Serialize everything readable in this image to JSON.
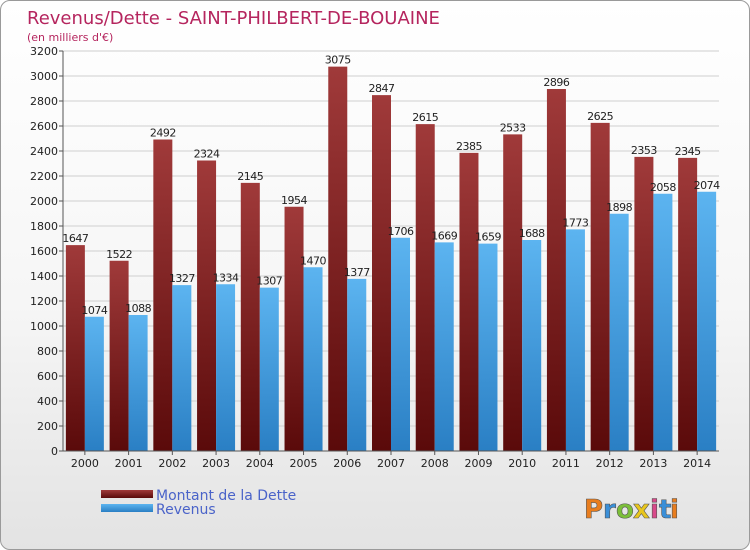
{
  "chart_data": {
    "type": "bar",
    "title": "Revenus/Dette - SAINT-PHILBERT-DE-BOUAINE",
    "subtitle": "(en milliers d'€)",
    "categories": [
      "2000",
      "2001",
      "2002",
      "2003",
      "2004",
      "2005",
      "2006",
      "2007",
      "2008",
      "2009",
      "2010",
      "2011",
      "2012",
      "2013",
      "2014"
    ],
    "series": [
      {
        "name": "Montant de la Dette",
        "color": "#8b2323",
        "values": [
          1647,
          1522,
          2492,
          2324,
          2145,
          1954,
          3075,
          2847,
          2615,
          2385,
          2533,
          2896,
          2625,
          2353,
          2345
        ]
      },
      {
        "name": "Revenus",
        "color": "#4aa3e8",
        "values": [
          1074,
          1088,
          1327,
          1334,
          1307,
          1470,
          1377,
          1706,
          1669,
          1659,
          1688,
          1773,
          1898,
          2058,
          2074
        ]
      }
    ],
    "ylim": [
      0,
      3200
    ],
    "yticks": [
      0,
      200,
      400,
      600,
      800,
      1000,
      1200,
      1400,
      1600,
      1800,
      2000,
      2200,
      2400,
      2600,
      2800,
      3000,
      3200
    ],
    "grid": true,
    "legend": "bottom-left"
  },
  "logo": {
    "letters": [
      "P",
      "r",
      "o",
      "x",
      "i",
      "t",
      "i"
    ],
    "colors": [
      "#e87d1e",
      "#3a8fd8",
      "#7cbf3a",
      "#e8c61e",
      "#d84a8a",
      "#3a8fd8",
      "#e87d1e"
    ]
  }
}
